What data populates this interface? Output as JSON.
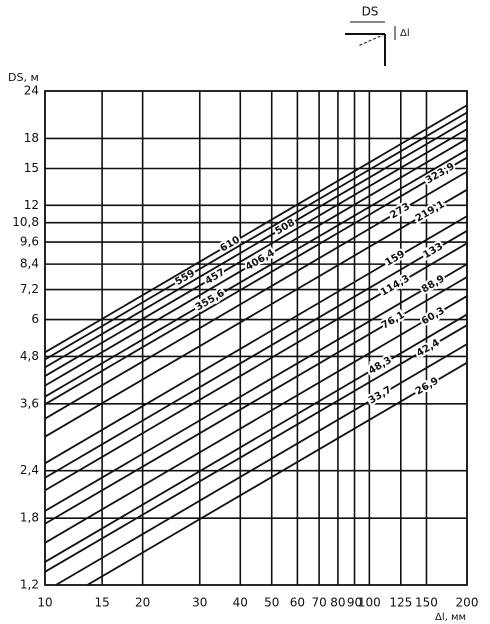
{
  "chart_data": {
    "type": "line",
    "log_x": true,
    "log_y": true,
    "grid": true,
    "x_label": "Δl, мм",
    "y_label": "DS, м",
    "inset_labels": [
      "DS",
      "Δl"
    ],
    "xlim": [
      10,
      200
    ],
    "ylim": [
      1.2,
      24
    ],
    "xticks": [
      10,
      15,
      20,
      30,
      40,
      50,
      60,
      70,
      80,
      90,
      100,
      125,
      150,
      200
    ],
    "yticks": [
      {
        "value": 1.2,
        "label": "1,2"
      },
      {
        "value": 1.8,
        "label": "1,8"
      },
      {
        "value": 2.4,
        "label": "2,4"
      },
      {
        "value": 3.6,
        "label": "3,6"
      },
      {
        "value": 4.8,
        "label": "4,8"
      },
      6,
      {
        "value": 7.2,
        "label": "7,2"
      },
      {
        "value": 8.4,
        "label": "8,4"
      },
      {
        "value": 9.6,
        "label": "9,6"
      },
      {
        "value": 10.8,
        "label": "10,8"
      },
      12,
      15,
      18,
      24
    ],
    "color": "#111111",
    "series": [
      {
        "name": "26,9",
        "x": [
          13.5,
          200
        ],
        "values": [
          1.2,
          4.62
        ]
      },
      {
        "name": "33,7",
        "x": [
          10.8,
          200
        ],
        "values": [
          1.2,
          5.17
        ]
      },
      {
        "name": "42,4",
        "x": [
          10,
          200
        ],
        "values": [
          1.3,
          5.8
        ]
      },
      {
        "name": "48,3",
        "x": [
          10,
          200
        ],
        "values": [
          1.38,
          6.19
        ]
      },
      {
        "name": "60,3",
        "x": [
          10,
          200
        ],
        "values": [
          1.55,
          6.92
        ]
      },
      {
        "name": "76,1",
        "x": [
          10,
          200
        ],
        "values": [
          1.74,
          7.77
        ]
      },
      {
        "name": "88,9",
        "x": [
          10,
          200
        ],
        "values": [
          1.88,
          8.4
        ]
      },
      {
        "name": "114,3",
        "x": [
          10,
          200
        ],
        "values": [
          2.13,
          9.53
        ]
      },
      {
        "name": "133",
        "x": [
          10,
          200
        ],
        "values": [
          2.3,
          10.28
        ]
      },
      {
        "name": "159",
        "x": [
          10,
          200
        ],
        "values": [
          2.51,
          11.24
        ]
      },
      {
        "name": "219,1",
        "x": [
          10,
          200
        ],
        "values": [
          2.95,
          13.19
        ]
      },
      {
        "name": "273",
        "x": [
          10,
          200
        ],
        "values": [
          3.29,
          14.72
        ]
      },
      {
        "name": "323,9",
        "x": [
          10,
          200
        ],
        "values": [
          3.59,
          16.03
        ]
      },
      {
        "name": "355,6",
        "x": [
          10,
          200
        ],
        "values": [
          3.76,
          16.8
        ]
      },
      {
        "name": "406,4",
        "x": [
          10,
          200
        ],
        "values": [
          4.02,
          17.96
        ]
      },
      {
        "name": "457",
        "x": [
          10,
          200
        ],
        "values": [
          4.26,
          19.05
        ]
      },
      {
        "name": "508",
        "x": [
          10,
          200
        ],
        "values": [
          4.49,
          20.08
        ]
      },
      {
        "name": "559",
        "x": [
          10,
          200
        ],
        "values": [
          4.71,
          21.07
        ]
      },
      {
        "name": "610",
        "x": [
          10,
          200
        ],
        "values": [
          4.92,
          22.01
        ]
      }
    ]
  }
}
